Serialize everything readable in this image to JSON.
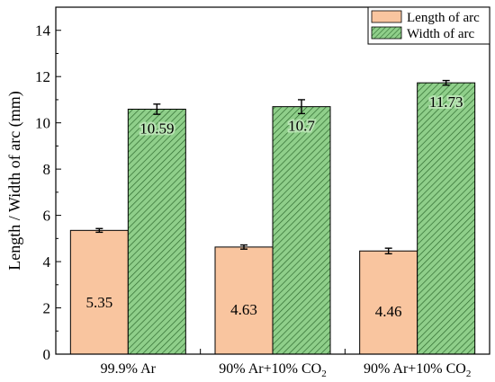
{
  "chart_data": {
    "type": "bar",
    "title": "",
    "xlabel": "",
    "ylabel": "Length / Width of arc (mm)",
    "ylim": [
      0,
      15
    ],
    "yticks": [
      0,
      2,
      4,
      6,
      8,
      10,
      12,
      14
    ],
    "grid": false,
    "legend_position": "top-right",
    "categories": [
      {
        "main": "99.9% Ar",
        "sub": ""
      },
      {
        "main": "90% Ar+10% CO",
        "sub": "2"
      },
      {
        "main": "90% Ar+10% CO",
        "sub": "2"
      }
    ],
    "series": [
      {
        "name": "Length of arc",
        "color": "#f9c59f",
        "pattern": "solid",
        "values": [
          5.35,
          4.63,
          4.46
        ],
        "labels": [
          "5.35",
          "4.63",
          "4.46"
        ],
        "errors": [
          0.08,
          0.09,
          0.12
        ]
      },
      {
        "name": "Width of arc",
        "color": "#8fcf8a",
        "pattern": "diagonal-hatch",
        "hatch_color": "#2f6b2f",
        "values": [
          10.59,
          10.7,
          11.73
        ],
        "labels": [
          "10.59",
          "10.7",
          "11.73"
        ],
        "errors": [
          0.22,
          0.3,
          0.1
        ]
      }
    ]
  }
}
